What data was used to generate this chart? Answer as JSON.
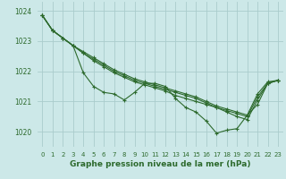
{
  "title": "Graphe pression niveau de la mer (hPa)",
  "background_color": "#cce8e8",
  "grid_color": "#aacccc",
  "line_color": "#2d6a2d",
  "xlim": [
    -0.5,
    23.5
  ],
  "ylim": [
    1019.5,
    1024.3
  ],
  "yticks": [
    1020,
    1021,
    1022,
    1023,
    1024
  ],
  "xtick_labels": [
    "0",
    "1",
    "2",
    "3",
    "4",
    "5",
    "6",
    "7",
    "8",
    "9",
    "10",
    "11",
    "12",
    "13",
    "14",
    "15",
    "16",
    "17",
    "18",
    "19",
    "20",
    "21",
    "22",
    "23"
  ],
  "series": [
    [
      1023.85,
      1023.35,
      1023.1,
      1022.85,
      1021.95,
      1021.5,
      1021.3,
      1021.25,
      1021.05,
      1021.3,
      1021.6,
      1021.6,
      1021.5,
      1021.1,
      1020.8,
      1020.65,
      1020.35,
      1019.95,
      1020.05,
      1020.1,
      1020.55,
      1020.9,
      1021.6,
      1021.7
    ],
    [
      1023.85,
      1023.35,
      1023.1,
      1022.85,
      1022.6,
      1022.35,
      1022.15,
      1021.95,
      1021.8,
      1021.65,
      1021.55,
      1021.45,
      1021.35,
      1021.2,
      1021.1,
      1021.0,
      1020.9,
      1020.8,
      1020.65,
      1020.5,
      1020.4,
      1021.05,
      1021.6,
      1021.7
    ],
    [
      1023.85,
      1023.35,
      1023.1,
      1022.85,
      1022.6,
      1022.4,
      1022.2,
      1022.0,
      1021.85,
      1021.7,
      1021.6,
      1021.5,
      1021.4,
      1021.3,
      1021.2,
      1021.1,
      1020.95,
      1020.8,
      1020.7,
      1020.6,
      1020.5,
      1021.15,
      1021.6,
      1021.7
    ],
    [
      1023.85,
      1023.35,
      1023.1,
      1022.85,
      1022.65,
      1022.45,
      1022.25,
      1022.05,
      1021.9,
      1021.75,
      1021.65,
      1021.55,
      1021.45,
      1021.35,
      1021.25,
      1021.15,
      1021.0,
      1020.85,
      1020.75,
      1020.65,
      1020.55,
      1021.25,
      1021.65,
      1021.7
    ]
  ]
}
